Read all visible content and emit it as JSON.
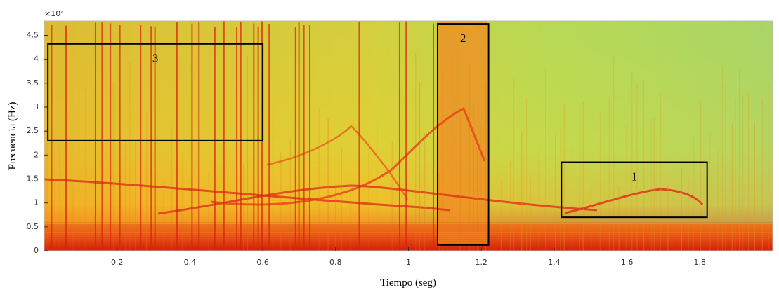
{
  "chart_data": {
    "type": "spectrogram",
    "x_label": "Tiempo (seg)",
    "y_label": "Frecuencia (Hz)",
    "y_exponent_label": "×10⁴",
    "xlim": [
      0,
      2
    ],
    "xticks": [
      0.2,
      0.4,
      0.6,
      0.8,
      1,
      1.2,
      1.4,
      1.6,
      1.8
    ],
    "ylim": [
      0,
      48000
    ],
    "yticks": [
      {
        "value": 0,
        "label": "0"
      },
      {
        "value": 5000,
        "label": "0.5"
      },
      {
        "value": 10000,
        "label": "1"
      },
      {
        "value": 15000,
        "label": "1.5"
      },
      {
        "value": 20000,
        "label": "2"
      },
      {
        "value": 25000,
        "label": "2.5"
      },
      {
        "value": 30000,
        "label": "3"
      },
      {
        "value": 35000,
        "label": "3.5"
      },
      {
        "value": 40000,
        "label": "4"
      },
      {
        "value": 45000,
        "label": "4.5"
      }
    ],
    "annotations": [
      {
        "label": "1",
        "x": [
          1.42,
          1.82
        ],
        "y": [
          7000,
          18500
        ]
      },
      {
        "label": "2",
        "x": [
          1.08,
          1.22
        ],
        "y": [
          1200,
          47400
        ]
      },
      {
        "label": "3",
        "x": [
          0.01,
          0.6
        ],
        "y": [
          23000,
          43200
        ]
      }
    ],
    "box_color": "#000000"
  }
}
